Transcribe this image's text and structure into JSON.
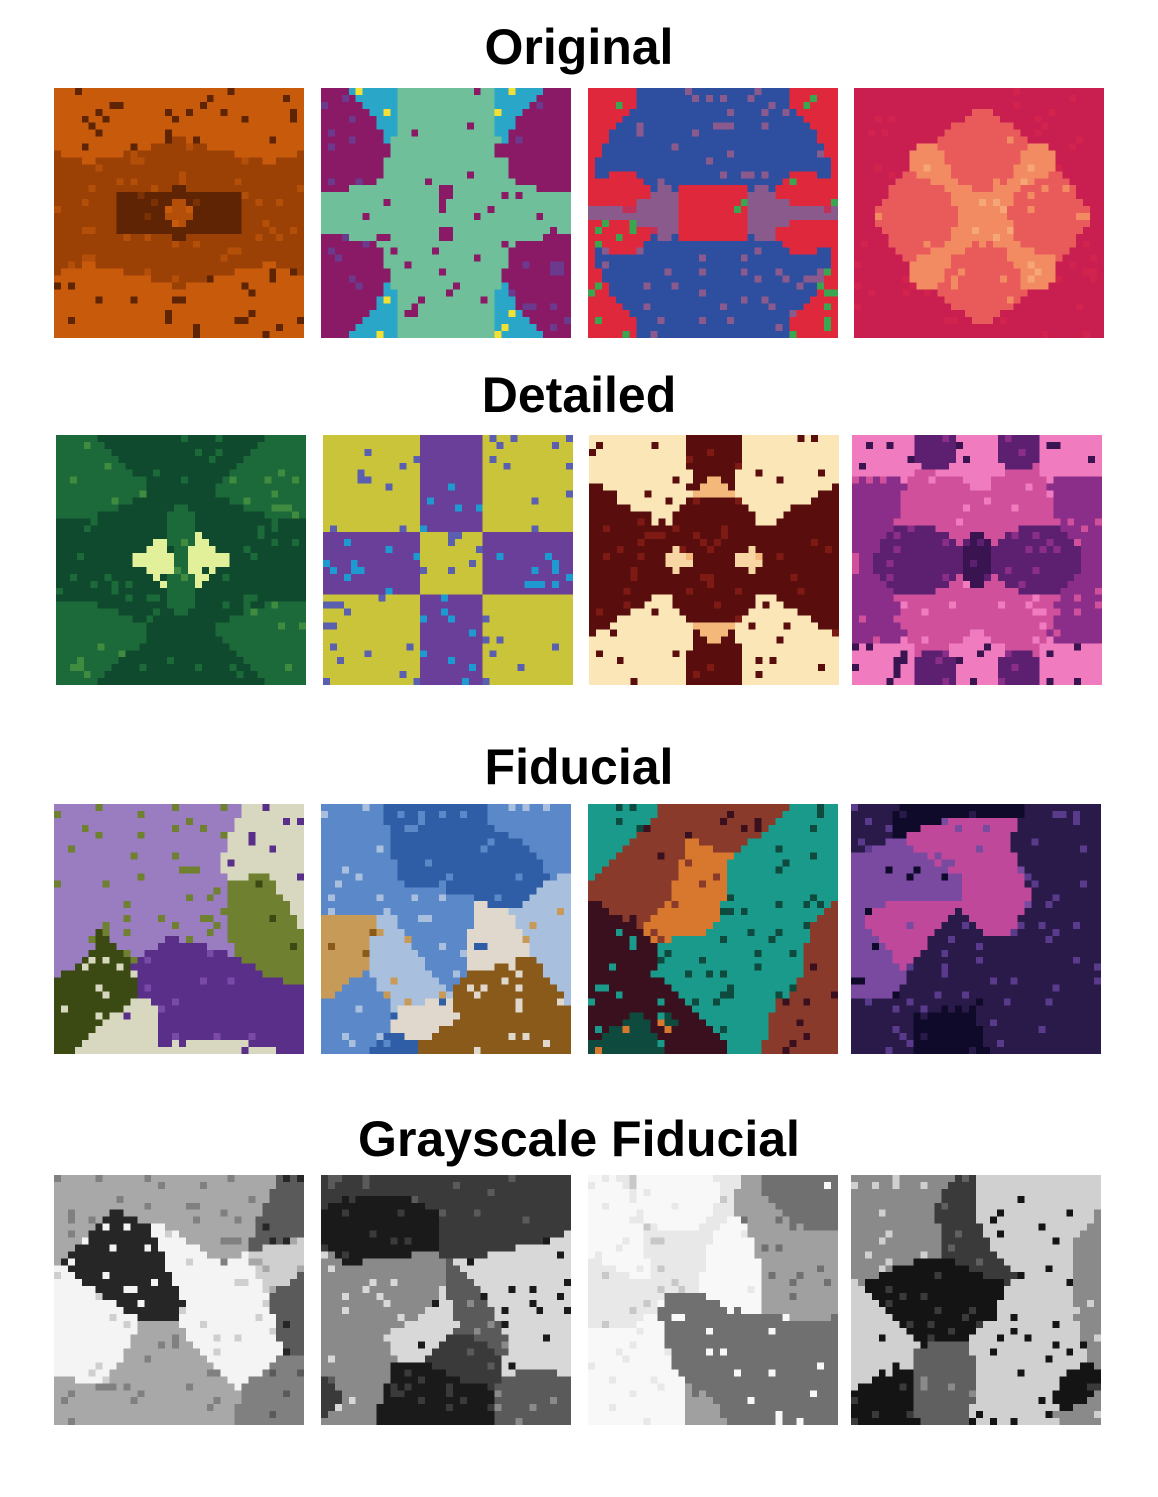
{
  "sections": [
    {
      "title": "Original",
      "tiles": [
        {
          "name": "brown-kaleidoscope",
          "palette": [
            "#5e2403",
            "#7a3104",
            "#9b4106",
            "#b34f08",
            "#c85a0c"
          ],
          "sym": "mirror"
        },
        {
          "name": "magenta-yellow-kaleidoscope",
          "palette": [
            "#8b1a66",
            "#6b3a8c",
            "#9a2f72",
            "#2aa6c9",
            "#f3e035",
            "#6fbf9a"
          ],
          "sym": "mirror"
        },
        {
          "name": "red-green-blue-kaleidoscope",
          "palette": [
            "#e0283c",
            "#3ba650",
            "#2e4ea0",
            "#8a5a8c",
            "#c23058"
          ],
          "sym": "mirror"
        },
        {
          "name": "pink-peach-kaleidoscope",
          "palette": [
            "#d2224e",
            "#e95a5a",
            "#f28a62",
            "#f6a777",
            "#c91f50"
          ],
          "sym": "rotate"
        }
      ]
    },
    {
      "title": "Detailed",
      "tiles": [
        {
          "name": "green-kaleidoscope",
          "palette": [
            "#0f4a2e",
            "#1c6a3a",
            "#3f8b40",
            "#8fbe5e",
            "#e3f09a"
          ],
          "sym": "mirror"
        },
        {
          "name": "blue-purple-kaleidoscope",
          "palette": [
            "#6a3f9a",
            "#1e9ad0",
            "#3aa0c8",
            "#8a2a7a",
            "#c9c43a",
            "#5a5fb0"
          ],
          "sym": "rotate"
        },
        {
          "name": "maroon-cream-kaleidoscope",
          "palette": [
            "#5a0d0d",
            "#7d1a14",
            "#f7d6a3",
            "#f3b87a",
            "#fbe6b8"
          ],
          "sym": "mirror"
        },
        {
          "name": "purple-pink-kaleidoscope",
          "palette": [
            "#3a1450",
            "#5d2070",
            "#8a2e8a",
            "#d0509c",
            "#f07bbe"
          ],
          "sym": "mirror"
        }
      ]
    },
    {
      "title": "Fiducial",
      "tiles": [
        {
          "name": "purple-olive-pattern",
          "palette": [
            "#5a2f8a",
            "#7a4aa8",
            "#9a7cc0",
            "#6f8030",
            "#3a4a12",
            "#d8d8c0"
          ],
          "sym": "none"
        },
        {
          "name": "blue-tan-pattern",
          "palette": [
            "#2f5ea6",
            "#5a88c8",
            "#a8c0de",
            "#c89a58",
            "#8a5a1a",
            "#e0d8cc"
          ],
          "sym": "none"
        },
        {
          "name": "teal-orange-pattern",
          "palette": [
            "#1a9a8a",
            "#0f4a3e",
            "#d8782e",
            "#8a3a2a",
            "#3a0f1e"
          ],
          "sym": "none"
        },
        {
          "name": "dark-purple-pink-pattern",
          "palette": [
            "#0f0a2a",
            "#2a1a4a",
            "#5a3a8a",
            "#c0489a",
            "#7a4aa0"
          ],
          "sym": "none"
        }
      ]
    },
    {
      "title": "Grayscale Fiducial",
      "tiles": [
        {
          "name": "grayscale-pattern-1",
          "palette": [
            "#f4f4f4",
            "#cfcfcf",
            "#a8a8a8",
            "#808080",
            "#5a5a5a",
            "#262626"
          ],
          "sym": "none"
        },
        {
          "name": "grayscale-pattern-2",
          "palette": [
            "#1a1a1a",
            "#3a3a3a",
            "#5a5a5a",
            "#8a8a8a",
            "#d8d8d8"
          ],
          "sym": "none"
        },
        {
          "name": "grayscale-pattern-3",
          "palette": [
            "#e8e8e8",
            "#c8c8c8",
            "#a0a0a0",
            "#707070",
            "#f8f8f8"
          ],
          "sym": "none"
        },
        {
          "name": "grayscale-pattern-4",
          "palette": [
            "#141414",
            "#3a3a3a",
            "#606060",
            "#8a8a8a",
            "#d0d0d0"
          ],
          "sym": "none"
        }
      ]
    }
  ]
}
